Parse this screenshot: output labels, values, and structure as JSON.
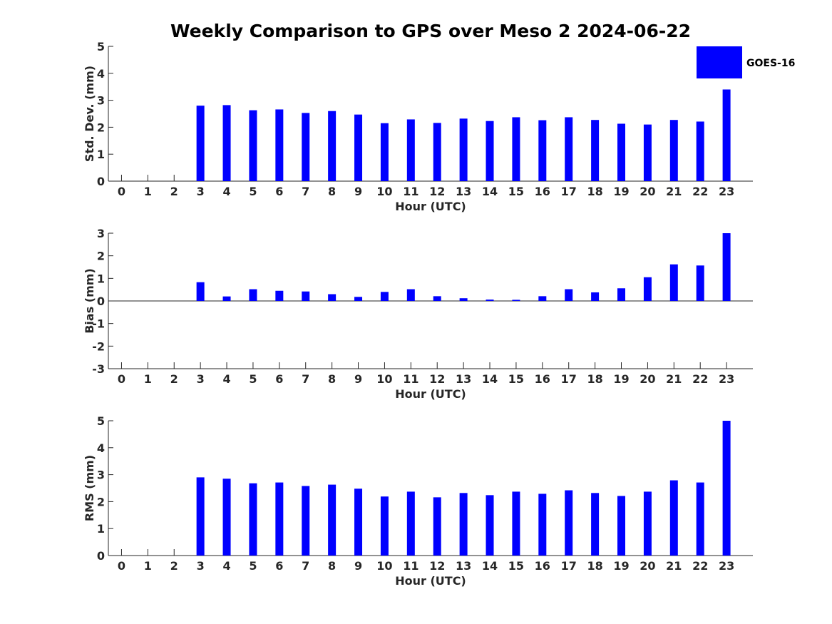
{
  "chart_data": {
    "type": "bar",
    "title": "Weekly Comparison to GPS over Meso 2 2024-06-22",
    "legend": {
      "entries": [
        "GOES-16"
      ],
      "placement": "top-right",
      "color": "#0000ff"
    },
    "bar_color": "#0000ff",
    "categories": [
      "0",
      "1",
      "2",
      "3",
      "4",
      "5",
      "6",
      "7",
      "8",
      "9",
      "10",
      "11",
      "12",
      "13",
      "14",
      "15",
      "16",
      "17",
      "18",
      "19",
      "20",
      "21",
      "22",
      "23"
    ],
    "panels": [
      {
        "id": "std",
        "ylabel": "Std. Dev. (mm)",
        "xlabel": "Hour (UTC)",
        "ylim": [
          0,
          5
        ],
        "yticks": [
          "0",
          "1",
          "2",
          "3",
          "4",
          "5"
        ],
        "series": [
          {
            "name": "GOES-16",
            "values": [
              null,
              null,
              null,
              2.8,
              2.82,
              2.63,
              2.66,
              2.53,
              2.6,
              2.47,
              2.15,
              2.29,
              2.16,
              2.32,
              2.23,
              2.37,
              2.26,
              2.37,
              2.27,
              2.13,
              2.1,
              2.27,
              2.21,
              3.4
            ]
          }
        ]
      },
      {
        "id": "bias",
        "ylabel": "Bias (mm)",
        "xlabel": "Hour (UTC)",
        "ylim": [
          -3,
          3
        ],
        "yticks": [
          "-3",
          "-2",
          "-1",
          "0",
          "1",
          "2",
          "3"
        ],
        "series": [
          {
            "name": "GOES-16",
            "values": [
              null,
              null,
              null,
              0.83,
              0.2,
              0.52,
              0.45,
              0.42,
              0.3,
              0.18,
              0.4,
              0.52,
              0.21,
              0.12,
              0.06,
              0.05,
              0.21,
              0.52,
              0.38,
              0.56,
              1.05,
              1.62,
              1.57,
              3.0
            ]
          }
        ]
      },
      {
        "id": "rms",
        "ylabel": "RMS (mm)",
        "xlabel": "Hour (UTC)",
        "ylim": [
          0,
          5
        ],
        "yticks": [
          "0",
          "1",
          "2",
          "3",
          "4",
          "5"
        ],
        "series": [
          {
            "name": "GOES-16",
            "values": [
              null,
              null,
              null,
              2.9,
              2.85,
              2.68,
              2.71,
              2.58,
              2.63,
              2.48,
              2.19,
              2.37,
              2.16,
              2.32,
              2.24,
              2.37,
              2.29,
              2.42,
              2.32,
              2.21,
              2.37,
              2.79,
              2.71,
              5.0
            ]
          }
        ]
      }
    ]
  }
}
